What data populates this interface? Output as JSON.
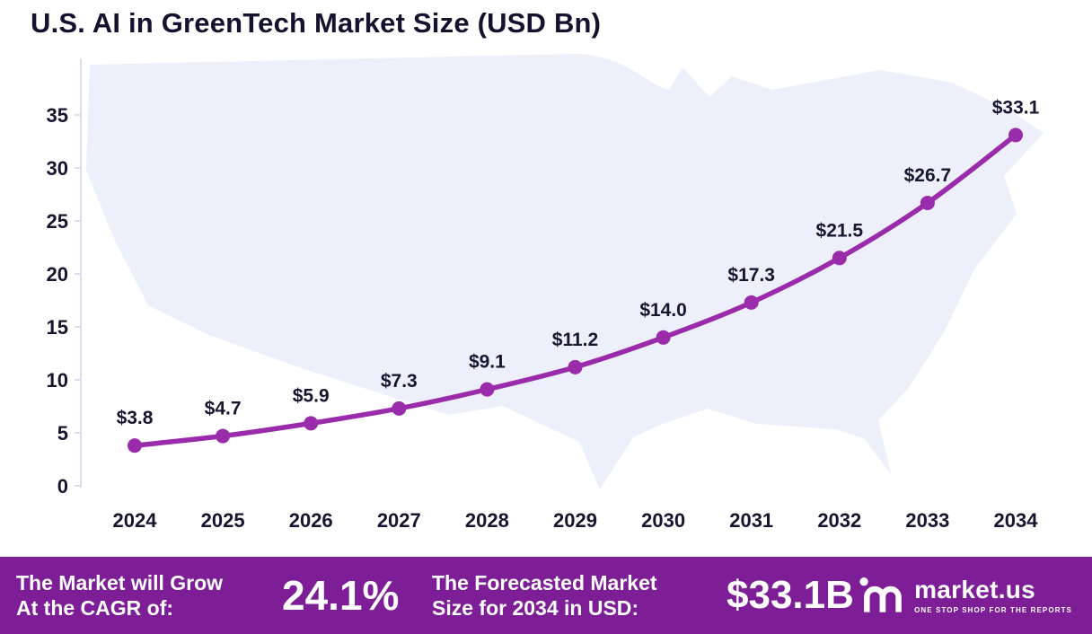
{
  "title": "U.S. AI in GreenTech Market Size (USD Bn)",
  "colors": {
    "line": "#9a2bab",
    "footer_bg": "#7e1e96",
    "text": "#17152f",
    "map_fill": "#edeffa",
    "axis": "#dddcea"
  },
  "chart_data": {
    "type": "line",
    "title": "U.S. AI in GreenTech Market Size (USD Bn)",
    "categories": [
      "2024",
      "2025",
      "2026",
      "2027",
      "2028",
      "2029",
      "2030",
      "2031",
      "2032",
      "2033",
      "2034"
    ],
    "values": [
      3.8,
      4.7,
      5.9,
      7.3,
      9.1,
      11.2,
      14.0,
      17.3,
      21.5,
      26.7,
      33.1
    ],
    "labels": [
      "$3.8",
      "$4.7",
      "$5.9",
      "$7.3",
      "$9.1",
      "$11.2",
      "$14.0",
      "$17.3",
      "$21.5",
      "$26.7",
      "$33.1"
    ],
    "unit": "USD Bn",
    "ylim": [
      0,
      35
    ],
    "yticks": [
      0,
      5,
      10,
      15,
      20,
      25,
      30,
      35
    ],
    "grid": false,
    "legend": "none",
    "line_color": "#9a2bab"
  },
  "footer": {
    "cagr_label_line1": "The Market will Grow",
    "cagr_label_line2": "At the CAGR of:",
    "cagr_value": "24.1%",
    "forecast_label_line1": "The Forecasted Market",
    "forecast_label_line2": "Size for 2034 in USD:",
    "forecast_value": "$33.1B",
    "brand_name": "market.us",
    "brand_tagline": "ONE STOP SHOP FOR THE REPORTS"
  }
}
